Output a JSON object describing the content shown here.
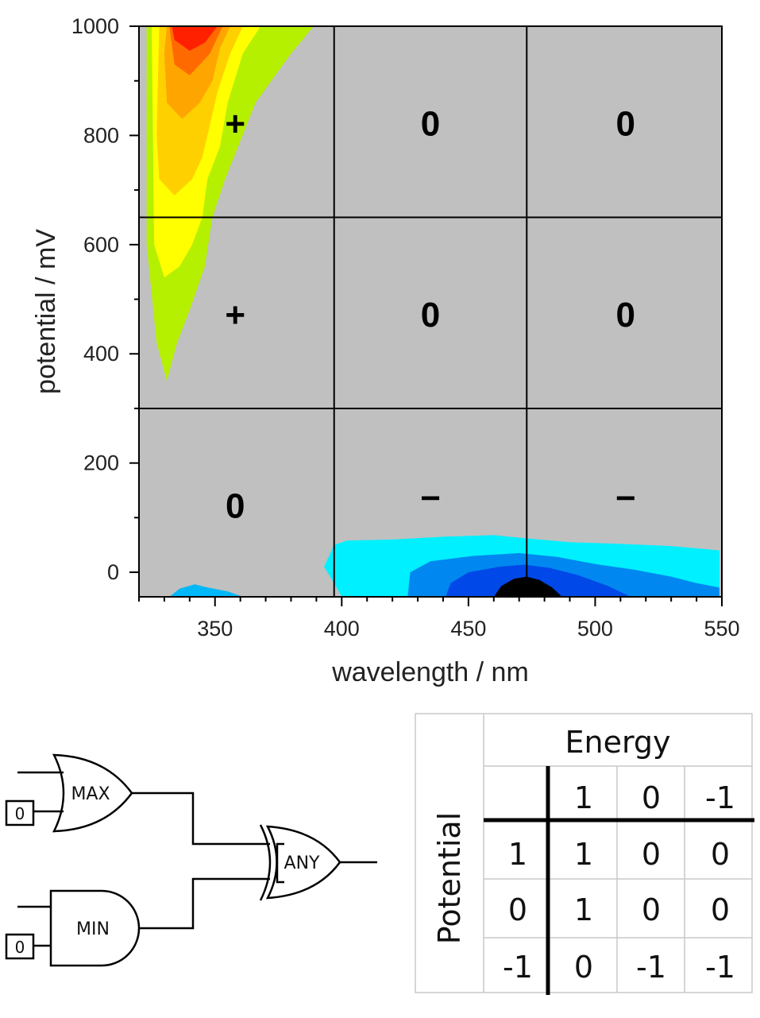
{
  "chart_data": {
    "type": "heatmap",
    "subtype": "filled-contour",
    "xlabel": "wavelength / nm",
    "ylabel": "potential / mV",
    "xlim": [
      320,
      550
    ],
    "ylim": [
      -45,
      1000
    ],
    "xticks": [
      350,
      400,
      450,
      500,
      550
    ],
    "yticks": [
      0,
      200,
      400,
      600,
      800,
      1000
    ],
    "grid": {
      "x_boundaries": [
        397,
        473
      ],
      "y_boundaries": [
        300,
        650
      ]
    },
    "cell_labels": [
      {
        "x": 358,
        "y": 820,
        "text": "+"
      },
      {
        "x": 435,
        "y": 820,
        "text": "0"
      },
      {
        "x": 512,
        "y": 820,
        "text": "0"
      },
      {
        "x": 358,
        "y": 470,
        "text": "+"
      },
      {
        "x": 435,
        "y": 470,
        "text": "0"
      },
      {
        "x": 512,
        "y": 470,
        "text": "0"
      },
      {
        "x": 358,
        "y": 120,
        "text": "0"
      },
      {
        "x": 435,
        "y": 135,
        "text": "−"
      },
      {
        "x": 512,
        "y": 135,
        "text": "−"
      }
    ],
    "colors": {
      "background": "#c0c0c0",
      "positive": [
        "#b5f000",
        "#ffff00",
        "#ffd000",
        "#ffa500",
        "#ff6a00",
        "#ff2000"
      ],
      "negative": [
        "#00f0ff",
        "#00b8f8",
        "#0088f0",
        "#0048e8"
      ]
    },
    "contours": {
      "positive": [
        [
          [
            330,
            1000
          ],
          [
            389,
            1000
          ],
          [
            380,
            950
          ],
          [
            366,
            860
          ],
          [
            360,
            790
          ],
          [
            354,
            720
          ],
          [
            349,
            650
          ],
          [
            346,
            560
          ],
          [
            340,
            480
          ],
          [
            335,
            420
          ],
          [
            331,
            350
          ],
          [
            327,
            420
          ],
          [
            323,
            600
          ],
          [
            323,
            1000
          ]
        ],
        [
          [
            330,
            1000
          ],
          [
            368,
            1000
          ],
          [
            361,
            950
          ],
          [
            355,
            860
          ],
          [
            352,
            780
          ],
          [
            347,
            720
          ],
          [
            345,
            650
          ],
          [
            341,
            600
          ],
          [
            336,
            560
          ],
          [
            330,
            540
          ],
          [
            326,
            600
          ],
          [
            325,
            1000
          ]
        ],
        [
          [
            334,
            1000
          ],
          [
            361,
            1000
          ],
          [
            356,
            950
          ],
          [
            351,
            880
          ],
          [
            348,
            820
          ],
          [
            345,
            760
          ],
          [
            341,
            720
          ],
          [
            334,
            690
          ],
          [
            328,
            720
          ],
          [
            327,
            800
          ],
          [
            328,
            1000
          ]
        ],
        [
          [
            335,
            1000
          ],
          [
            356,
            1000
          ],
          [
            352,
            960
          ],
          [
            349,
            900
          ],
          [
            344,
            860
          ],
          [
            337,
            830
          ],
          [
            331,
            860
          ],
          [
            330,
            950
          ],
          [
            331,
            1000
          ]
        ],
        [
          [
            336,
            1000
          ],
          [
            353,
            1000
          ],
          [
            348,
            950
          ],
          [
            340,
            910
          ],
          [
            334,
            930
          ],
          [
            332,
            1000
          ]
        ],
        [
          [
            337,
            1000
          ],
          [
            351,
            1000
          ],
          [
            346,
            970
          ],
          [
            340,
            955
          ],
          [
            334,
            975
          ],
          [
            333,
            1000
          ]
        ]
      ],
      "negative": [
        [
          [
            393,
            10
          ],
          [
            397,
            50
          ],
          [
            402,
            58
          ],
          [
            420,
            60
          ],
          [
            440,
            65
          ],
          [
            460,
            68
          ],
          [
            473,
            62
          ],
          [
            490,
            55
          ],
          [
            510,
            52
          ],
          [
            530,
            48
          ],
          [
            549,
            40
          ],
          [
            549,
            -45
          ],
          [
            400,
            -45
          ],
          [
            397,
            -20
          ]
        ],
        [
          [
            332,
            -45
          ],
          [
            336,
            -30
          ],
          [
            342,
            -22
          ],
          [
            347,
            -28
          ],
          [
            355,
            -35
          ],
          [
            361,
            -45
          ]
        ],
        [
          [
            426,
            -45
          ],
          [
            427,
            0
          ],
          [
            435,
            20
          ],
          [
            452,
            30
          ],
          [
            470,
            35
          ],
          [
            485,
            28
          ],
          [
            500,
            15
          ],
          [
            515,
            5
          ],
          [
            530,
            -8
          ],
          [
            540,
            -20
          ],
          [
            549,
            -28
          ],
          [
            549,
            -45
          ]
        ],
        [
          [
            441,
            -45
          ],
          [
            443,
            -20
          ],
          [
            450,
            0
          ],
          [
            462,
            10
          ],
          [
            472,
            14
          ],
          [
            482,
            8
          ],
          [
            493,
            -5
          ],
          [
            505,
            -25
          ],
          [
            514,
            -45
          ]
        ],
        [
          [
            460,
            -45
          ],
          [
            463,
            -25
          ],
          [
            468,
            -12
          ],
          [
            473,
            -8
          ],
          [
            478,
            -14
          ],
          [
            483,
            -28
          ],
          [
            487,
            -45
          ]
        ]
      ]
    }
  },
  "logic_diagram": {
    "gates": [
      {
        "type": "or",
        "label": "MAX"
      },
      {
        "type": "and",
        "label": "MIN"
      },
      {
        "type": "xor",
        "label": "ANY"
      }
    ],
    "constant_inputs": [
      "0",
      "0"
    ]
  },
  "truth_table": {
    "column_header": "Energy",
    "row_header": "Potential",
    "column_values": [
      "1",
      "0",
      "-1"
    ],
    "row_values": [
      "1",
      "0",
      "-1"
    ],
    "cells": [
      [
        "1",
        "1",
        "0",
        "0"
      ],
      [
        "0",
        "1",
        "0",
        "0"
      ],
      [
        "-1",
        "0",
        "-1",
        "-1"
      ]
    ]
  }
}
